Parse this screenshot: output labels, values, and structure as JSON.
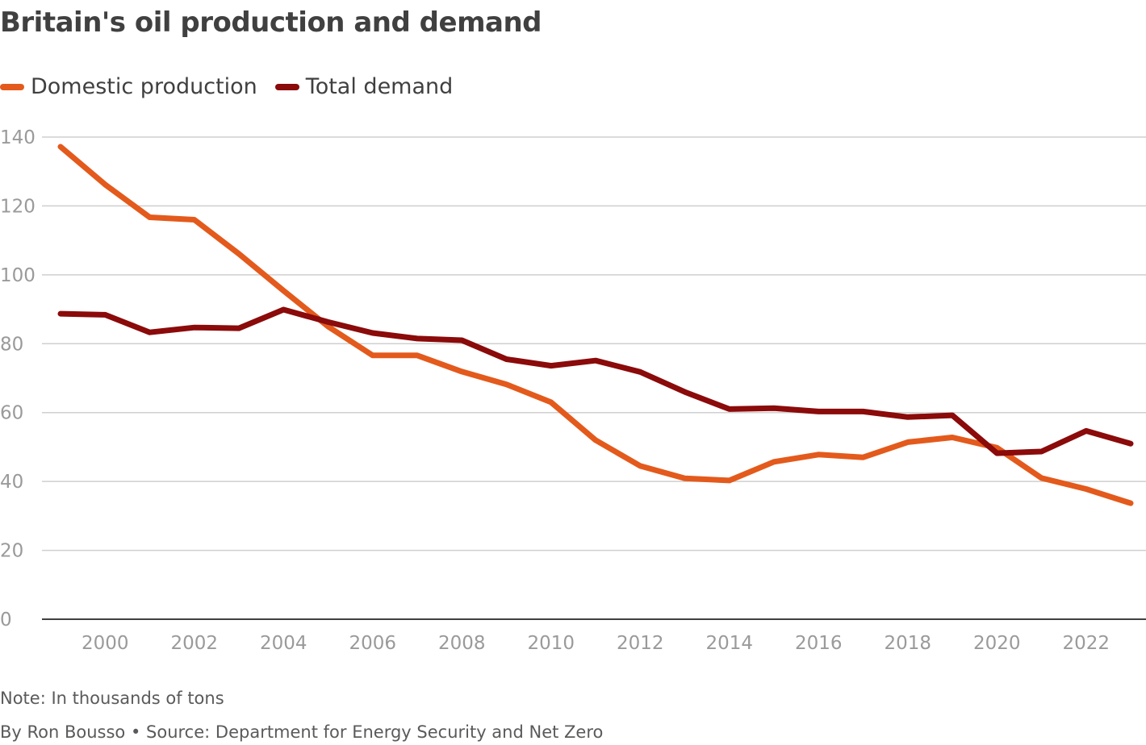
{
  "header": {
    "title": "Britain's oil production and demand"
  },
  "legend": [
    {
      "label": "Domestic production",
      "color": "#e35a1c"
    },
    {
      "label": "Total demand",
      "color": "#8b0a0a"
    }
  ],
  "footer": {
    "note": "Note: In thousands of tons",
    "source": "By Ron Bousso • Source: Department for Energy Security and Net Zero"
  },
  "chart_data": {
    "type": "line",
    "title": "Britain's oil production and demand",
    "xlabel": "",
    "ylabel": "",
    "x": [
      1999,
      2000,
      2001,
      2002,
      2003,
      2004,
      2005,
      2006,
      2007,
      2008,
      2009,
      2010,
      2011,
      2012,
      2013,
      2014,
      2015,
      2016,
      2017,
      2018,
      2019,
      2020,
      2021,
      2022,
      2023
    ],
    "xlim": [
      1998.6,
      2023.3
    ],
    "ylim": [
      0,
      140
    ],
    "x_ticks": [
      2000,
      2002,
      2004,
      2006,
      2008,
      2010,
      2012,
      2014,
      2016,
      2018,
      2020,
      2022
    ],
    "y_ticks": [
      0,
      20,
      40,
      60,
      80,
      100,
      120,
      140
    ],
    "grid": "horizontal",
    "legend_position": "top-left",
    "series": [
      {
        "name": "Domestic production",
        "color": "#e35a1c",
        "values": [
          137.2,
          126.2,
          116.7,
          116.0,
          106.1,
          95.4,
          85.0,
          76.6,
          76.6,
          71.9,
          68.2,
          63.0,
          52.0,
          44.5,
          40.9,
          40.3,
          45.7,
          47.8,
          47.0,
          51.4,
          52.8,
          49.8,
          41.0,
          37.8,
          33.7
        ]
      },
      {
        "name": "Total demand",
        "color": "#8b0a0a",
        "values": [
          88.7,
          88.4,
          83.3,
          84.7,
          84.5,
          89.9,
          86.3,
          83.1,
          81.5,
          81.0,
          75.5,
          73.6,
          75.1,
          71.8,
          66.0,
          61.0,
          61.3,
          60.3,
          60.3,
          58.7,
          59.2,
          48.2,
          48.7,
          54.7,
          51.0
        ]
      }
    ]
  }
}
